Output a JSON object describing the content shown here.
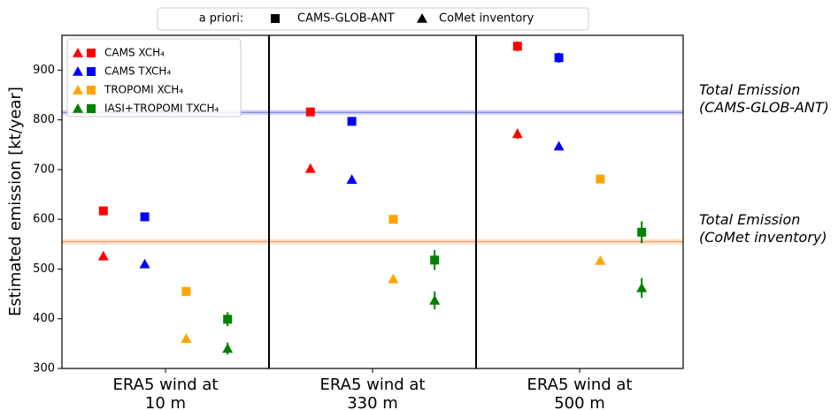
{
  "chart_data": {
    "type": "scatter",
    "y_label": "Estimated emission [kt/year]",
    "categories": [
      "ERA5 wind at 10 m",
      "ERA5 wind at 330 m",
      "ERA5 wind at 500 m"
    ],
    "ylim": [
      300,
      970
    ],
    "yticks": [
      300,
      400,
      500,
      600,
      700,
      800,
      900
    ],
    "priors_legend": {
      "title": "a priori:",
      "square": "CAMS-GLOB-ANT",
      "triangle": "CoMet inventory"
    },
    "series": [
      {
        "name": "CAMS XCH₄",
        "color": "#ff0000",
        "values": [
          617,
          816,
          948
        ],
        "errors": [
          6,
          8,
          10
        ],
        "values_comet": [
          526,
          702,
          772
        ],
        "errors_comet": [
          5,
          8,
          10
        ]
      },
      {
        "name": "CAMS TXCH₄",
        "color": "#0000ff",
        "values": [
          605,
          797,
          925
        ],
        "errors": [
          5,
          6,
          10
        ],
        "values_comet": [
          510,
          680,
          747
        ],
        "errors_comet": [
          4,
          5,
          6
        ]
      },
      {
        "name": "TROPOMI XCH₄",
        "color": "#ffa500",
        "values": [
          455,
          600,
          681
        ],
        "errors": [
          5,
          5,
          5
        ],
        "values_comet": [
          360,
          480,
          517
        ],
        "errors_comet": [
          4,
          4,
          4
        ]
      },
      {
        "name": "IASI+TROPOMI TXCH₄",
        "color": "#008000",
        "values": [
          399,
          518,
          574
        ],
        "errors": [
          14,
          20,
          22
        ],
        "values_comet": [
          340,
          437,
          462
        ],
        "errors_comet": [
          12,
          18,
          20
        ]
      }
    ],
    "reference_lines": [
      {
        "value": 815,
        "label": "Total Emission (CAMS-GLOB-ANT)",
        "color": "#8080e0"
      },
      {
        "value": 555,
        "label": "Total Emission (CoMet inventory)",
        "color": "#f0a060"
      }
    ]
  }
}
